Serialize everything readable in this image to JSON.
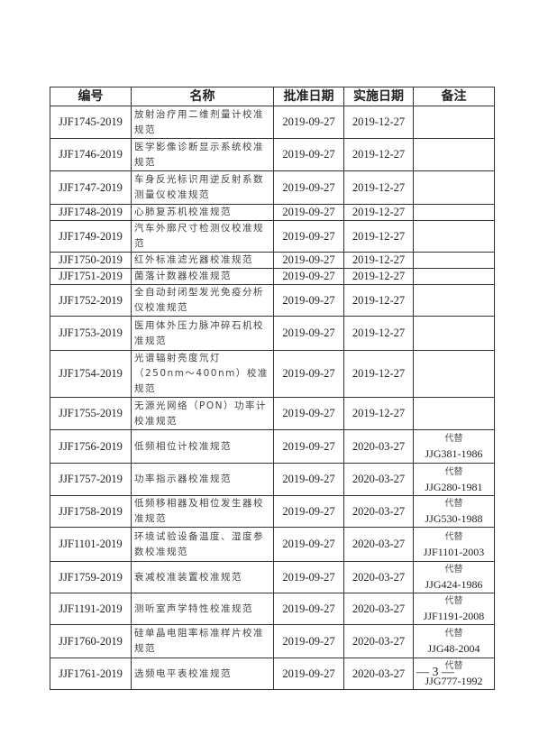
{
  "table": {
    "headers": [
      "编号",
      "名称",
      "批准日期",
      "实施日期",
      "备注"
    ],
    "rows": [
      {
        "code": "JJF1745-2019",
        "name": "放射治疗用二维剂量计校准规范",
        "approved": "2019-09-27",
        "effective": "2019-12-27",
        "note_label": "",
        "note_ref": ""
      },
      {
        "code": "JJF1746-2019",
        "name": "医学影像诊断显示系统校准规范",
        "approved": "2019-09-27",
        "effective": "2019-12-27",
        "note_label": "",
        "note_ref": ""
      },
      {
        "code": "JJF1747-2019",
        "name": "车身反光标识用逆反射系数测量仪校准规范",
        "approved": "2019-09-27",
        "effective": "2019-12-27",
        "note_label": "",
        "note_ref": ""
      },
      {
        "code": "JJF1748-2019",
        "name": "心肺复苏机校准规范",
        "approved": "2019-09-27",
        "effective": "2019-12-27",
        "note_label": "",
        "note_ref": ""
      },
      {
        "code": "JJF1749-2019",
        "name": "汽车外廓尺寸检测仪校准规范",
        "approved": "2019-09-27",
        "effective": "2019-12-27",
        "note_label": "",
        "note_ref": ""
      },
      {
        "code": "JJF1750-2019",
        "name": "红外标准滤光器校准规范",
        "approved": "2019-09-27",
        "effective": "2019-12-27",
        "note_label": "",
        "note_ref": ""
      },
      {
        "code": "JJF1751-2019",
        "name": "菌落计数器校准规范",
        "approved": "2019-09-27",
        "effective": "2019-12-27",
        "note_label": "",
        "note_ref": ""
      },
      {
        "code": "JJF1752-2019",
        "name": "全自动封闭型发光免疫分析仪校准规范",
        "approved": "2019-09-27",
        "effective": "2019-12-27",
        "note_label": "",
        "note_ref": ""
      },
      {
        "code": "JJF1753-2019",
        "name": "医用体外压力脉冲碎石机校准规范",
        "approved": "2019-09-27",
        "effective": "2019-12-27",
        "note_label": "",
        "note_ref": ""
      },
      {
        "code": "JJF1754-2019",
        "name": "光谱辐射亮度氘灯（250nm～400nm）校准规范",
        "approved": "2019-09-27",
        "effective": "2019-12-27",
        "note_label": "",
        "note_ref": ""
      },
      {
        "code": "JJF1755-2019",
        "name": "无源光网络（PON）功率计校准规范",
        "approved": "2019-09-27",
        "effective": "2019-12-27",
        "note_label": "",
        "note_ref": ""
      },
      {
        "code": "JJF1756-2019",
        "name": "低频相位计校准规范",
        "approved": "2019-09-27",
        "effective": "2020-03-27",
        "note_label": "代替",
        "note_ref": "JJG381-1986"
      },
      {
        "code": "JJF1757-2019",
        "name": "功率指示器校准规范",
        "approved": "2019-09-27",
        "effective": "2020-03-27",
        "note_label": "代替",
        "note_ref": "JJG280-1981"
      },
      {
        "code": "JJF1758-2019",
        "name": "低频移相器及相位发生器校准规范",
        "approved": "2019-09-27",
        "effective": "2020-03-27",
        "note_label": "代替",
        "note_ref": "JJG530-1988"
      },
      {
        "code": "JJF1101-2019",
        "name": "环境试验设备温度、湿度参数校准规范",
        "approved": "2019-09-27",
        "effective": "2020-03-27",
        "note_label": "代替",
        "note_ref": "JJF1101-2003"
      },
      {
        "code": "JJF1759-2019",
        "name": "衰减校准装置校准规范",
        "approved": "2019-09-27",
        "effective": "2020-03-27",
        "note_label": "代替",
        "note_ref": "JJG424-1986"
      },
      {
        "code": "JJF1191-2019",
        "name": "测听室声学特性校准规范",
        "approved": "2019-09-27",
        "effective": "2020-03-27",
        "note_label": "代替",
        "note_ref": "JJF1191-2008"
      },
      {
        "code": "JJF1760-2019",
        "name": "硅单晶电阻率标准样片校准规范",
        "approved": "2019-09-27",
        "effective": "2020-03-27",
        "note_label": "代替",
        "note_ref": "JJG48-2004"
      },
      {
        "code": "JJF1761-2019",
        "name": "选频电平表校准规范",
        "approved": "2019-09-27",
        "effective": "2020-03-27",
        "note_label": "代替",
        "note_ref": "JJG777-1992"
      }
    ]
  },
  "page_number": "— 3 —"
}
